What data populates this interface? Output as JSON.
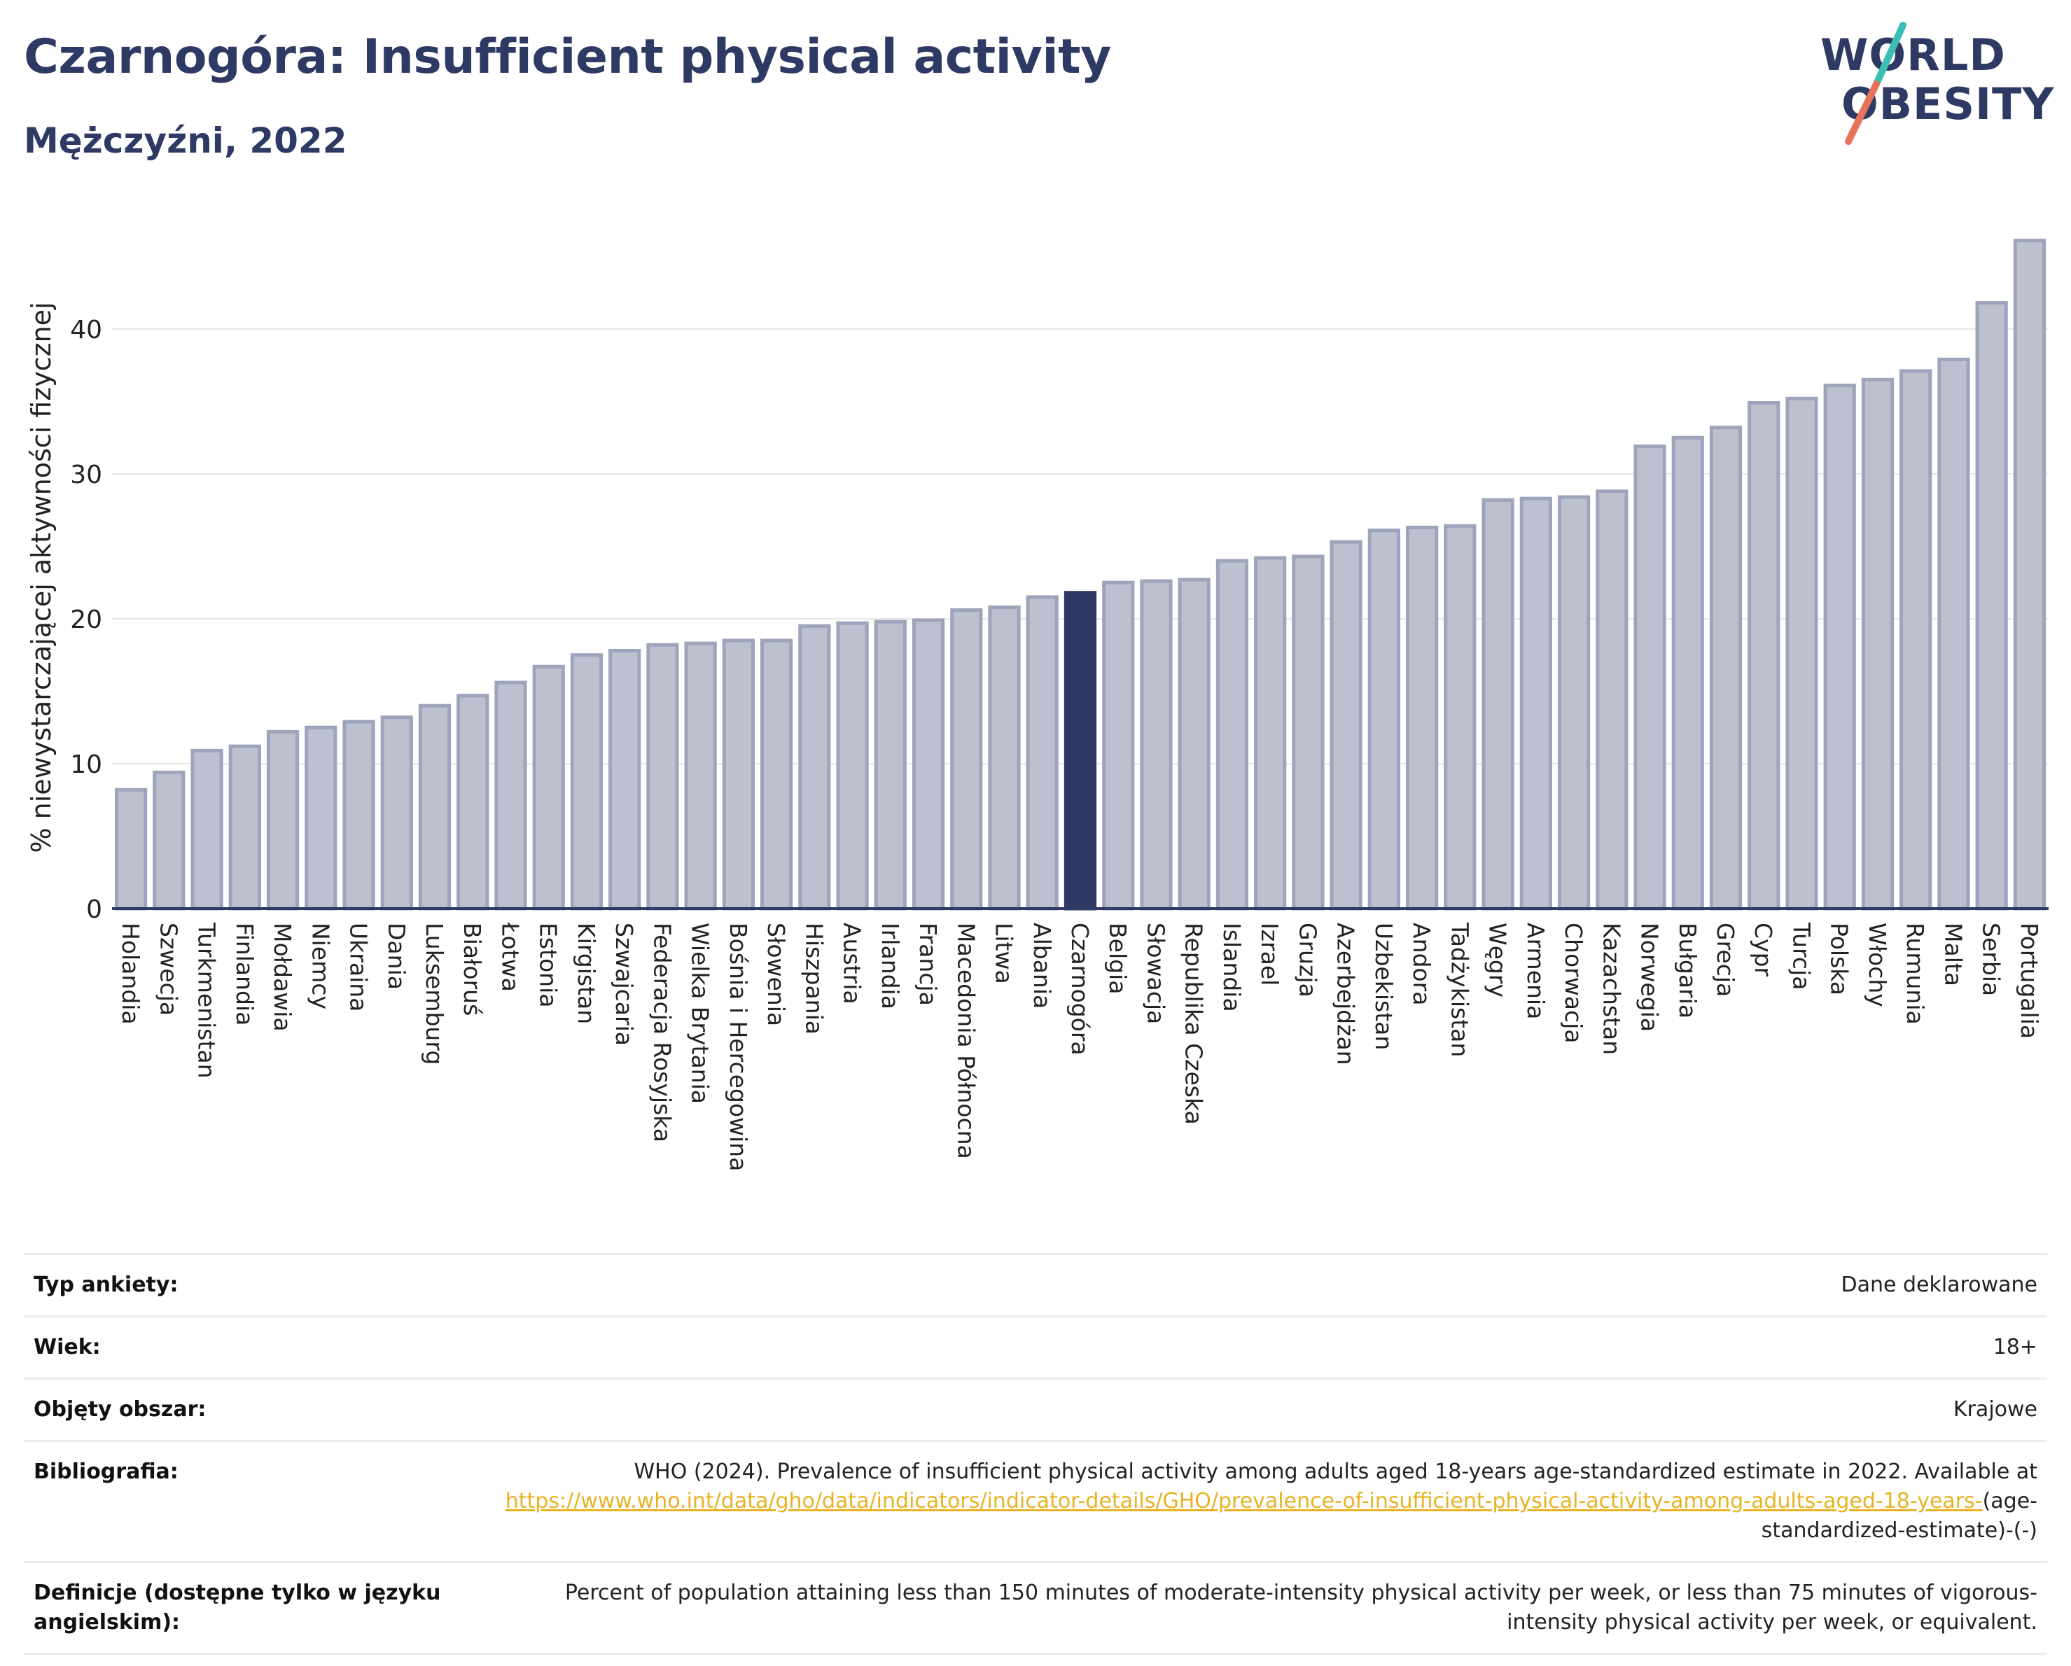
{
  "header": {
    "title": "Czarnogóra: Insufficient physical activity",
    "subtitle": "Mężczyźni, 2022"
  },
  "logo": {
    "line1": "WORLD",
    "line2": "OBESITY"
  },
  "colors": {
    "bar": "#bcc0cf",
    "bar_stroke": "#9ea4ba",
    "highlight": "#2e3a63",
    "title": "#2e3a63",
    "link": "#e8b323",
    "logo_slash_top": "#3bbfb4",
    "logo_slash_bottom": "#e8735c"
  },
  "chart_data": {
    "type": "bar",
    "ylabel": "% niewystarczającej aktywności fizycznej",
    "ylim": [
      0,
      47
    ],
    "yticks": [
      0,
      10,
      20,
      30,
      40
    ],
    "highlight": "Czarnogóra",
    "grid": true,
    "categories": [
      "Holandia",
      "Szwecja",
      "Turkmenistan",
      "Finlandia",
      "Mołdawia",
      "Niemcy",
      "Ukraina",
      "Dania",
      "Luksemburg",
      "Białoruś",
      "Łotwa",
      "Estonia",
      "Kirgistan",
      "Szwajcaria",
      "Federacja Rosyjska",
      "Wielka Brytania",
      "Bośnia i Hercegowina",
      "Słowenia",
      "Hiszpania",
      "Austria",
      "Irlandia",
      "Francja",
      "Macedonia Północna",
      "Litwa",
      "Albania",
      "Czarnogóra",
      "Belgia",
      "Słowacja",
      "Republika Czeska",
      "Islandia",
      "Izrael",
      "Gruzja",
      "Azerbejdżan",
      "Uzbekistan",
      "Andora",
      "Tadżykistan",
      "Węgry",
      "Armenia",
      "Chorwacja",
      "Kazachstan",
      "Norwegia",
      "Bułgaria",
      "Grecja",
      "Cypr",
      "Turcja",
      "Polska",
      "Włochy",
      "Rumunia",
      "Malta",
      "Serbia",
      "Portugalia"
    ],
    "values": [
      8.2,
      9.4,
      10.9,
      11.2,
      12.2,
      12.5,
      12.9,
      13.2,
      14.0,
      14.7,
      15.6,
      16.7,
      17.5,
      17.8,
      18.2,
      18.3,
      18.5,
      18.5,
      19.5,
      19.7,
      19.8,
      19.9,
      20.6,
      20.8,
      21.5,
      21.8,
      22.5,
      22.6,
      22.7,
      24.0,
      24.2,
      24.3,
      25.3,
      26.1,
      26.3,
      26.4,
      28.2,
      28.3,
      28.4,
      28.8,
      31.9,
      32.5,
      33.2,
      34.9,
      35.2,
      36.1,
      36.5,
      37.1,
      37.9,
      41.8,
      46.1
    ]
  },
  "info": {
    "survey_label": "Typ ankiety:",
    "survey_value": "Dane deklarowane",
    "age_label": "Wiek:",
    "age_value": "18+",
    "area_label": "Objęty obszar:",
    "area_value": "Krajowe",
    "bib_label": "Bibliografia:",
    "bib_text": "WHO (2024). Prevalence of insufficient physical activity among adults aged 18-years age-standardized estimate in 2022. Available at",
    "bib_link": "https://www.who.int/data/gho/data/indicators/indicator-details/GHO/prevalence-of-insufficient-physical-activity-among-adults-aged-18-years-",
    "bib_suffix": "(age-standardized-estimate)-(-)",
    "def_label": "Definicje (dostępne tylko w języku angielskim):",
    "def_text": "Percent of population attaining less than 150 minutes of moderate-intensity physical activity per week, or less than 75 minutes of vigorous-intensity physical activity per week, or equivalent."
  }
}
